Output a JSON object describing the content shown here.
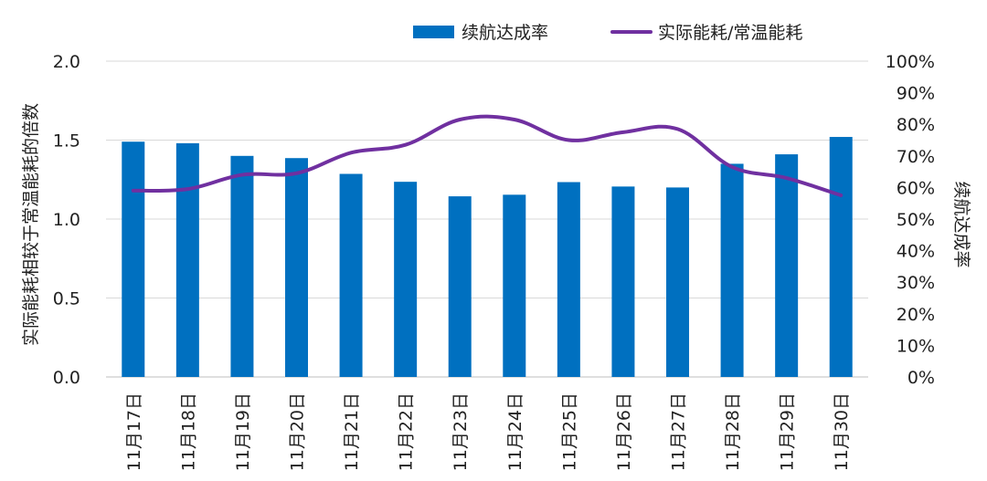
{
  "chart_data": {
    "type": "bar+line",
    "categories": [
      "11月17日",
      "11月18日",
      "11月19日",
      "11月20日",
      "11月21日",
      "11月22日",
      "11月23日",
      "11月24日",
      "11月25日",
      "11月26日",
      "11月27日",
      "11月28日",
      "11月29日",
      "11月30日"
    ],
    "series": [
      {
        "name": "续航达成率",
        "type": "bar",
        "axis": "right",
        "color": "#0070C0",
        "values": [
          74.5,
          74,
          70,
          69.3,
          64.3,
          61.8,
          57.2,
          57.7,
          61.7,
          60.3,
          60,
          67.5,
          70.5,
          76
        ]
      },
      {
        "name": "实际能耗/常温能耗",
        "type": "line",
        "axis": "left",
        "color": "#7030A0",
        "values": [
          1.18,
          1.19,
          1.28,
          1.29,
          1.42,
          1.47,
          1.63,
          1.63,
          1.5,
          1.55,
          1.57,
          1.33,
          1.26,
          1.15
        ]
      }
    ],
    "y_left": {
      "label": "实际能耗相较于常温能耗的倍数",
      "ylim": [
        0,
        2.0
      ],
      "ticks": [
        "0.0",
        "0.5",
        "1.0",
        "1.5",
        "2.0"
      ]
    },
    "y_right": {
      "label": "续航达成率",
      "ylim": [
        0,
        100
      ],
      "ticks": [
        "0%",
        "10%",
        "20%",
        "30%",
        "40%",
        "50%",
        "60%",
        "70%",
        "80%",
        "90%",
        "100%"
      ]
    },
    "grid": true,
    "legend": "top-right"
  }
}
